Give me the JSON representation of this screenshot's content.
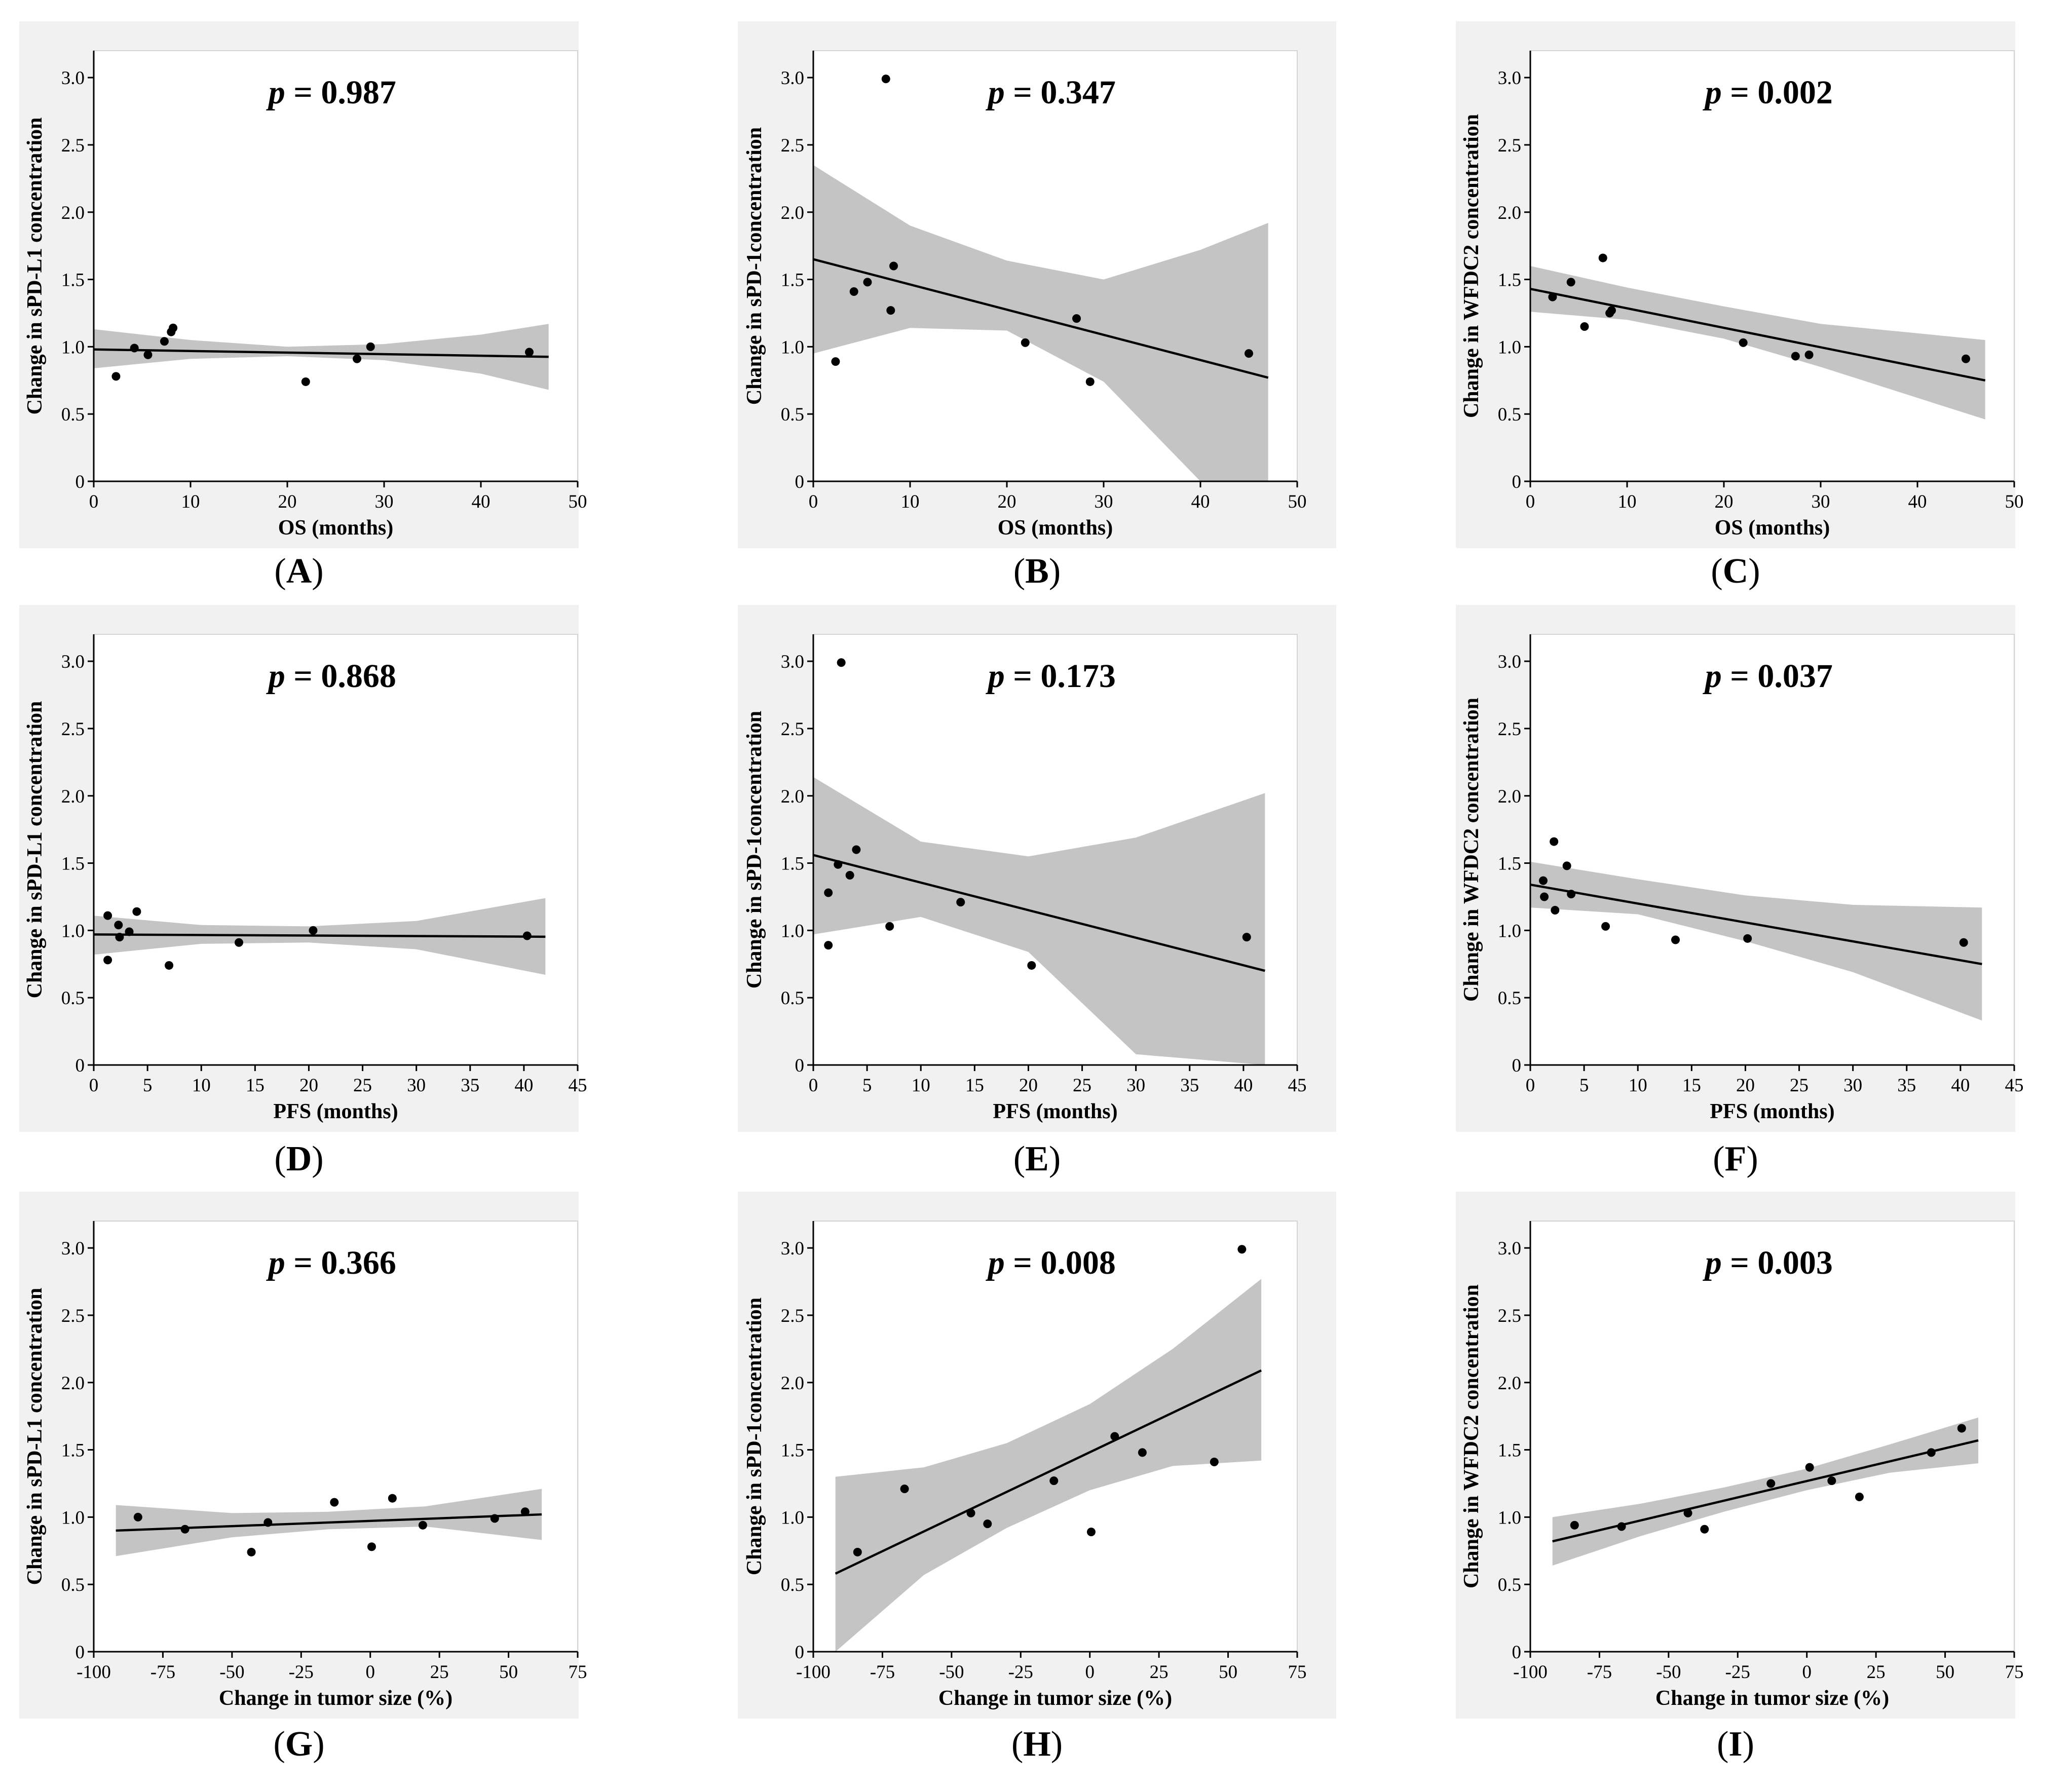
{
  "chart_data": [
    {
      "type": "scatter",
      "panel": "A",
      "p_symbol": "p",
      "p_value": "= 0.987",
      "xlabel": "OS (months)",
      "ylabel": "Change in sPD-L1 concentration",
      "xlim": [
        0,
        50
      ],
      "ylim": [
        0,
        3.2
      ],
      "xticks": [
        "0",
        "10",
        "20",
        "30",
        "40",
        "50"
      ],
      "yticks": [
        "0",
        "0.5",
        "1.0",
        "1.5",
        "2.0",
        "2.5",
        "3.0"
      ],
      "points": [
        [
          2.3,
          0.78
        ],
        [
          4.2,
          0.99
        ],
        [
          5.6,
          0.94
        ],
        [
          7.3,
          1.04
        ],
        [
          8.0,
          1.11
        ],
        [
          8.2,
          1.14
        ],
        [
          21.9,
          0.74
        ],
        [
          27.2,
          0.91
        ],
        [
          28.6,
          1.0
        ],
        [
          45.0,
          0.96
        ]
      ],
      "fit": {
        "x": [
          0,
          47
        ],
        "y": [
          0.98,
          0.925
        ]
      },
      "band": {
        "x": [
          0,
          10,
          20,
          30,
          40,
          47
        ],
        "lower": [
          0.84,
          0.91,
          0.93,
          0.9,
          0.8,
          0.68
        ],
        "upper": [
          1.13,
          1.05,
          1.0,
          1.02,
          1.09,
          1.17
        ]
      }
    },
    {
      "type": "scatter",
      "panel": "B",
      "p_symbol": "p",
      "p_value": "= 0.347",
      "xlabel": "OS (months)",
      "ylabel": "Change in sPD-1concentration",
      "xlim": [
        0,
        50
      ],
      "ylim": [
        0,
        3.2
      ],
      "xticks": [
        "0",
        "10",
        "20",
        "30",
        "40",
        "50"
      ],
      "yticks": [
        "0",
        "0.5",
        "1.0",
        "1.5",
        "2.0",
        "2.5",
        "3.0"
      ],
      "points": [
        [
          2.3,
          0.89
        ],
        [
          4.2,
          1.41
        ],
        [
          5.6,
          1.48
        ],
        [
          7.5,
          2.99
        ],
        [
          8.0,
          1.27
        ],
        [
          8.3,
          1.6
        ],
        [
          21.9,
          1.03
        ],
        [
          27.2,
          1.21
        ],
        [
          28.6,
          0.74
        ],
        [
          45.0,
          0.95
        ]
      ],
      "fit": {
        "x": [
          0,
          47
        ],
        "y": [
          1.65,
          0.77
        ]
      },
      "band": {
        "x": [
          0,
          10,
          20,
          30,
          40,
          47
        ],
        "lower": [
          0.95,
          1.14,
          1.12,
          0.74,
          0.0,
          0.0
        ],
        "upper": [
          2.35,
          1.9,
          1.64,
          1.5,
          1.72,
          1.92
        ]
      }
    },
    {
      "type": "scatter",
      "panel": "C",
      "p_symbol": "p",
      "p_value": "= 0.002",
      "xlabel": "OS (months)",
      "ylabel": "Change in WFDC2 concentration",
      "xlim": [
        0,
        50
      ],
      "ylim": [
        0,
        3.2
      ],
      "xticks": [
        "0",
        "10",
        "20",
        "30",
        "40",
        "50"
      ],
      "yticks": [
        "0",
        "0.5",
        "1.0",
        "1.5",
        "2.0",
        "2.5",
        "3.0"
      ],
      "points": [
        [
          2.3,
          1.37
        ],
        [
          4.2,
          1.48
        ],
        [
          5.6,
          1.15
        ],
        [
          7.5,
          1.66
        ],
        [
          8.2,
          1.25
        ],
        [
          8.4,
          1.27
        ],
        [
          22.0,
          1.03
        ],
        [
          27.4,
          0.93
        ],
        [
          28.8,
          0.94
        ],
        [
          45.0,
          0.91
        ]
      ],
      "fit": {
        "x": [
          0,
          47
        ],
        "y": [
          1.43,
          0.75
        ]
      },
      "band": {
        "x": [
          0,
          10,
          20,
          30,
          40,
          47
        ],
        "lower": [
          1.26,
          1.2,
          1.06,
          0.85,
          0.62,
          0.46
        ],
        "upper": [
          1.6,
          1.44,
          1.3,
          1.17,
          1.1,
          1.05
        ]
      }
    },
    {
      "type": "scatter",
      "panel": "D",
      "p_symbol": "p",
      "p_value": "= 0.868",
      "xlabel": "PFS (months)",
      "ylabel": "Change in sPD-L1 concentration",
      "xlim": [
        0,
        45
      ],
      "ylim": [
        0,
        3.2
      ],
      "xticks": [
        "0",
        "5",
        "10",
        "15",
        "20",
        "25",
        "30",
        "35",
        "40",
        "45"
      ],
      "yticks": [
        "0",
        "0.5",
        "1.0",
        "1.5",
        "2.0",
        "2.5",
        "3.0"
      ],
      "points": [
        [
          1.3,
          1.11
        ],
        [
          1.3,
          0.78
        ],
        [
          2.3,
          1.04
        ],
        [
          2.4,
          0.95
        ],
        [
          3.3,
          0.99
        ],
        [
          4.0,
          1.14
        ],
        [
          7.0,
          0.74
        ],
        [
          13.5,
          0.91
        ],
        [
          20.4,
          1.0
        ],
        [
          40.3,
          0.96
        ]
      ],
      "fit": {
        "x": [
          0,
          42
        ],
        "y": [
          0.97,
          0.953
        ]
      },
      "band": {
        "x": [
          0,
          10,
          20,
          30,
          42
        ],
        "lower": [
          0.82,
          0.9,
          0.91,
          0.86,
          0.67
        ],
        "upper": [
          1.11,
          1.04,
          1.03,
          1.07,
          1.24
        ]
      }
    },
    {
      "type": "scatter",
      "panel": "E",
      "p_symbol": "p",
      "p_value": "= 0.173",
      "xlabel": "PFS (months)",
      "ylabel": "Change in sPD-1concentration",
      "xlim": [
        0,
        45
      ],
      "ylim": [
        0,
        3.2
      ],
      "xticks": [
        "0",
        "5",
        "10",
        "15",
        "20",
        "25",
        "30",
        "35",
        "40",
        "45"
      ],
      "yticks": [
        "0",
        "0.5",
        "1.0",
        "1.5",
        "2.0",
        "2.5",
        "3.0"
      ],
      "points": [
        [
          1.4,
          1.28
        ],
        [
          1.4,
          0.89
        ],
        [
          2.3,
          1.49
        ],
        [
          2.6,
          2.99
        ],
        [
          3.4,
          1.41
        ],
        [
          4.0,
          1.6
        ],
        [
          7.1,
          1.03
        ],
        [
          13.7,
          1.21
        ],
        [
          20.3,
          0.74
        ],
        [
          40.3,
          0.95
        ]
      ],
      "fit": {
        "x": [
          0,
          42
        ],
        "y": [
          1.56,
          0.7
        ]
      },
      "band": {
        "x": [
          0,
          10,
          20,
          30,
          42
        ],
        "lower": [
          0.97,
          1.1,
          0.84,
          0.08,
          0.0
        ],
        "upper": [
          2.14,
          1.66,
          1.55,
          1.69,
          2.02
        ]
      }
    },
    {
      "type": "scatter",
      "panel": "F",
      "p_symbol": "p",
      "p_value": "= 0.037",
      "xlabel": "PFS (months)",
      "ylabel": "Change in WFDC2 concentration",
      "xlim": [
        0,
        45
      ],
      "ylim": [
        0,
        3.2
      ],
      "xticks": [
        "0",
        "5",
        "10",
        "15",
        "20",
        "25",
        "30",
        "35",
        "40",
        "45"
      ],
      "yticks": [
        "0",
        "0.5",
        "1.0",
        "1.5",
        "2.0",
        "2.5",
        "3.0"
      ],
      "points": [
        [
          1.2,
          1.37
        ],
        [
          1.3,
          1.25
        ],
        [
          2.2,
          1.66
        ],
        [
          2.3,
          1.15
        ],
        [
          3.4,
          1.48
        ],
        [
          3.8,
          1.27
        ],
        [
          7.0,
          1.03
        ],
        [
          13.5,
          0.93
        ],
        [
          20.2,
          0.94
        ],
        [
          40.3,
          0.91
        ]
      ],
      "fit": {
        "x": [
          0,
          42
        ],
        "y": [
          1.34,
          0.75
        ]
      },
      "band": {
        "x": [
          0,
          10,
          20,
          30,
          42
        ],
        "lower": [
          1.17,
          1.12,
          0.92,
          0.69,
          0.33
        ],
        "upper": [
          1.51,
          1.38,
          1.26,
          1.19,
          1.17
        ]
      }
    },
    {
      "type": "scatter",
      "panel": "G",
      "p_symbol": "p",
      "p_value": "= 0.366",
      "xlabel": "Change in tumor size (%)",
      "ylabel": "Change in sPD-L1 concentration",
      "xlim": [
        -100,
        75
      ],
      "ylim": [
        0,
        3.2
      ],
      "xticks": [
        "-100",
        "-75",
        "-50",
        "-25",
        "0",
        "25",
        "50",
        "75"
      ],
      "yticks": [
        "0",
        "0.5",
        "1.0",
        "1.5",
        "2.0",
        "2.5",
        "3.0"
      ],
      "points": [
        [
          -84,
          1.0
        ],
        [
          -67,
          0.91
        ],
        [
          -43,
          0.74
        ],
        [
          -37,
          0.96
        ],
        [
          -13,
          1.11
        ],
        [
          0.5,
          0.78
        ],
        [
          8,
          1.14
        ],
        [
          19,
          0.94
        ],
        [
          45,
          0.99
        ],
        [
          56,
          1.04
        ]
      ],
      "fit": {
        "x": [
          -92,
          62
        ],
        "y": [
          0.9,
          1.02
        ]
      },
      "band": {
        "x": [
          -92,
          -50,
          -15,
          20,
          62
        ],
        "lower": [
          0.71,
          0.85,
          0.91,
          0.93,
          0.83
        ],
        "upper": [
          1.09,
          1.03,
          1.04,
          1.08,
          1.21
        ]
      }
    },
    {
      "type": "scatter",
      "panel": "H",
      "p_symbol": "p",
      "p_value": "= 0.008",
      "xlabel": "Change in tumor size (%)",
      "ylabel": "Change in sPD-1concentration",
      "xlim": [
        -100,
        75
      ],
      "ylim": [
        0,
        3.2
      ],
      "xticks": [
        "-100",
        "-75",
        "-50",
        "-25",
        "0",
        "25",
        "50",
        "75"
      ],
      "yticks": [
        "0",
        "0.5",
        "1.0",
        "1.5",
        "2.0",
        "2.5",
        "3.0"
      ],
      "points": [
        [
          -84,
          0.74
        ],
        [
          -67,
          1.21
        ],
        [
          -43,
          1.03
        ],
        [
          -37,
          0.95
        ],
        [
          -13,
          1.27
        ],
        [
          0.5,
          0.89
        ],
        [
          9,
          1.6
        ],
        [
          19,
          1.48
        ],
        [
          45,
          1.41
        ],
        [
          55,
          2.99
        ]
      ],
      "fit": {
        "x": [
          -92,
          62
        ],
        "y": [
          0.58,
          2.09
        ]
      },
      "band": {
        "x": [
          -92,
          -60,
          -30,
          0,
          30,
          62
        ],
        "lower": [
          0.0,
          0.57,
          0.92,
          1.2,
          1.38,
          1.42
        ],
        "upper": [
          1.3,
          1.37,
          1.55,
          1.84,
          2.25,
          2.77
        ]
      }
    },
    {
      "type": "scatter",
      "panel": "I",
      "p_symbol": "p",
      "p_value": "= 0.003",
      "xlabel": "Change in tumor size (%)",
      "ylabel": "Change in WFDC2 concentration",
      "xlim": [
        -100,
        75
      ],
      "ylim": [
        0,
        3.2
      ],
      "xticks": [
        "-100",
        "-75",
        "-50",
        "-25",
        "0",
        "25",
        "50",
        "75"
      ],
      "yticks": [
        "0",
        "0.5",
        "1.0",
        "1.5",
        "2.0",
        "2.5",
        "3.0"
      ],
      "points": [
        [
          -84,
          0.94
        ],
        [
          -67,
          0.93
        ],
        [
          -43,
          1.03
        ],
        [
          -37,
          0.91
        ],
        [
          -13,
          1.25
        ],
        [
          1,
          1.37
        ],
        [
          9,
          1.27
        ],
        [
          19,
          1.15
        ],
        [
          45,
          1.48
        ],
        [
          56,
          1.66
        ]
      ],
      "fit": {
        "x": [
          -92,
          62
        ],
        "y": [
          0.82,
          1.57
        ]
      },
      "band": {
        "x": [
          -92,
          -60,
          -30,
          0,
          30,
          62
        ],
        "lower": [
          0.64,
          0.86,
          1.04,
          1.2,
          1.33,
          1.4
        ],
        "upper": [
          1.0,
          1.1,
          1.22,
          1.36,
          1.54,
          1.74
        ]
      }
    }
  ]
}
